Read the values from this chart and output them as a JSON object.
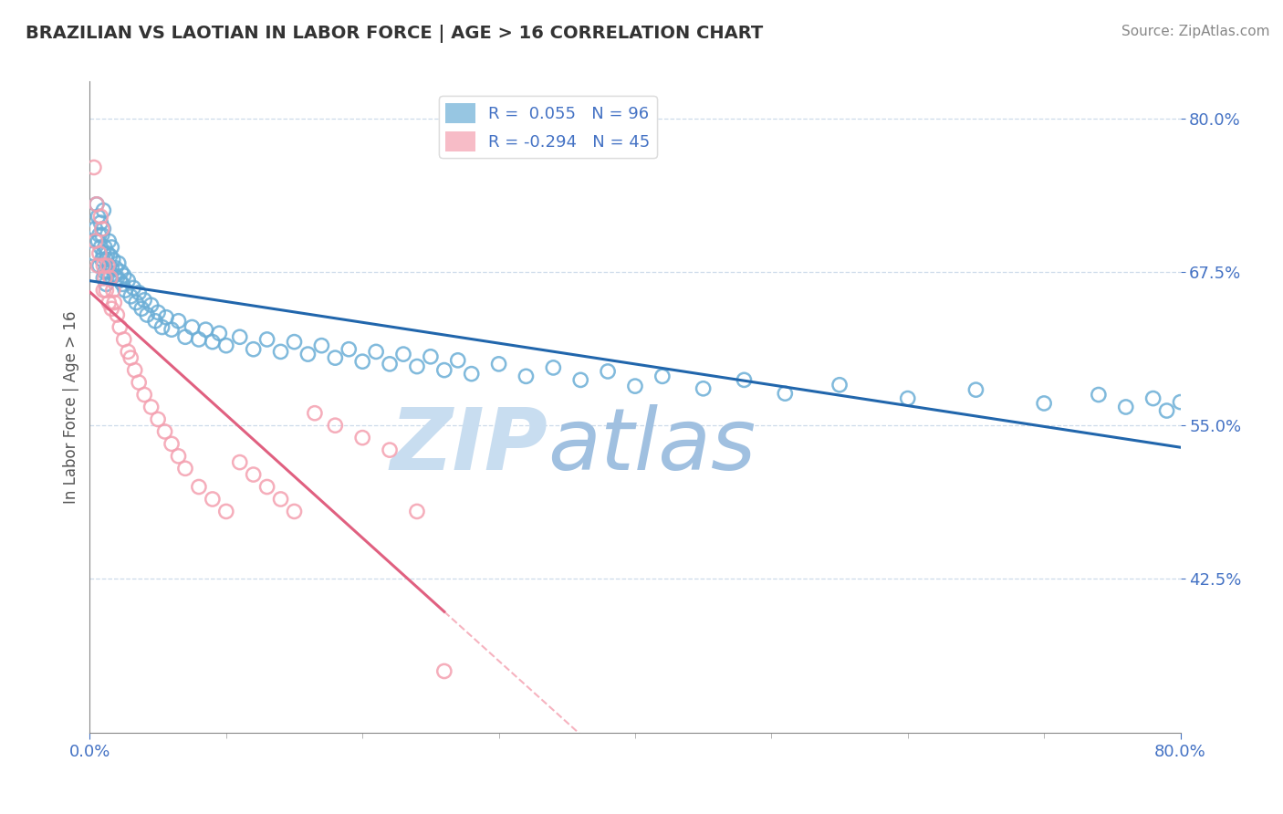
{
  "title": "BRAZILIAN VS LAOTIAN IN LABOR FORCE | AGE > 16 CORRELATION CHART",
  "source_text": "Source: ZipAtlas.com",
  "ylabel": "In Labor Force | Age > 16",
  "xlim": [
    0.0,
    0.8
  ],
  "ylim": [
    0.3,
    0.83
  ],
  "yticks": [
    0.425,
    0.55,
    0.675,
    0.8
  ],
  "ytick_labels": [
    "42.5%",
    "55.0%",
    "67.5%",
    "80.0%"
  ],
  "xtick_left_label": "0.0%",
  "xtick_right_label": "80.0%",
  "brazil_R": 0.055,
  "brazil_N": 96,
  "laotian_R": -0.294,
  "laotian_N": 45,
  "brazil_color": "#6baed6",
  "brazil_line_color": "#2166ac",
  "laotian_color": "#f4a0b0",
  "laotian_line_color": "#e06080",
  "laotian_dash_color": "#f4a0b0",
  "background_color": "#ffffff",
  "grid_color": "#c8d8e8",
  "watermark_zip_color": "#c8ddf0",
  "watermark_atlas_color": "#a0c0e0",
  "legend_label_color": "#4472c4",
  "axis_label_color": "#4472c4",
  "brazil_scatter_x": [
    0.003,
    0.004,
    0.005,
    0.006,
    0.006,
    0.007,
    0.007,
    0.008,
    0.008,
    0.009,
    0.009,
    0.01,
    0.01,
    0.01,
    0.01,
    0.011,
    0.011,
    0.012,
    0.012,
    0.013,
    0.013,
    0.014,
    0.014,
    0.015,
    0.015,
    0.016,
    0.016,
    0.017,
    0.018,
    0.019,
    0.02,
    0.021,
    0.022,
    0.023,
    0.024,
    0.025,
    0.026,
    0.028,
    0.03,
    0.032,
    0.034,
    0.036,
    0.038,
    0.04,
    0.042,
    0.045,
    0.048,
    0.05,
    0.053,
    0.056,
    0.06,
    0.065,
    0.07,
    0.075,
    0.08,
    0.085,
    0.09,
    0.095,
    0.1,
    0.11,
    0.12,
    0.13,
    0.14,
    0.15,
    0.16,
    0.17,
    0.18,
    0.19,
    0.2,
    0.21,
    0.22,
    0.23,
    0.24,
    0.25,
    0.26,
    0.27,
    0.28,
    0.3,
    0.32,
    0.34,
    0.36,
    0.38,
    0.4,
    0.42,
    0.45,
    0.48,
    0.51,
    0.55,
    0.6,
    0.65,
    0.7,
    0.74,
    0.76,
    0.78,
    0.79,
    0.8
  ],
  "brazil_scatter_y": [
    0.69,
    0.71,
    0.73,
    0.7,
    0.72,
    0.68,
    0.705,
    0.695,
    0.715,
    0.685,
    0.705,
    0.67,
    0.69,
    0.71,
    0.725,
    0.675,
    0.695,
    0.665,
    0.685,
    0.675,
    0.69,
    0.68,
    0.7,
    0.672,
    0.688,
    0.678,
    0.695,
    0.685,
    0.672,
    0.678,
    0.67,
    0.682,
    0.668,
    0.675,
    0.665,
    0.672,
    0.66,
    0.668,
    0.655,
    0.662,
    0.65,
    0.658,
    0.645,
    0.652,
    0.64,
    0.648,
    0.635,
    0.642,
    0.63,
    0.638,
    0.628,
    0.635,
    0.622,
    0.63,
    0.62,
    0.628,
    0.618,
    0.625,
    0.615,
    0.622,
    0.612,
    0.62,
    0.61,
    0.618,
    0.608,
    0.615,
    0.605,
    0.612,
    0.602,
    0.61,
    0.6,
    0.608,
    0.598,
    0.606,
    0.595,
    0.603,
    0.592,
    0.6,
    0.59,
    0.597,
    0.587,
    0.594,
    0.582,
    0.59,
    0.58,
    0.587,
    0.576,
    0.583,
    0.572,
    0.579,
    0.568,
    0.575,
    0.565,
    0.572,
    0.562,
    0.569
  ],
  "laotian_scatter_x": [
    0.003,
    0.004,
    0.005,
    0.006,
    0.007,
    0.008,
    0.009,
    0.01,
    0.01,
    0.011,
    0.012,
    0.013,
    0.014,
    0.015,
    0.016,
    0.017,
    0.018,
    0.02,
    0.022,
    0.025,
    0.028,
    0.03,
    0.033,
    0.036,
    0.04,
    0.045,
    0.05,
    0.055,
    0.06,
    0.065,
    0.07,
    0.08,
    0.09,
    0.1,
    0.11,
    0.12,
    0.13,
    0.14,
    0.15,
    0.165,
    0.18,
    0.2,
    0.22,
    0.24,
    0.26
  ],
  "laotian_scatter_y": [
    0.76,
    0.7,
    0.73,
    0.68,
    0.69,
    0.72,
    0.71,
    0.68,
    0.66,
    0.67,
    0.66,
    0.68,
    0.65,
    0.67,
    0.645,
    0.66,
    0.65,
    0.64,
    0.63,
    0.62,
    0.61,
    0.605,
    0.595,
    0.585,
    0.575,
    0.565,
    0.555,
    0.545,
    0.535,
    0.525,
    0.515,
    0.5,
    0.49,
    0.48,
    0.52,
    0.51,
    0.5,
    0.49,
    0.48,
    0.56,
    0.55,
    0.54,
    0.53,
    0.48,
    0.35
  ]
}
